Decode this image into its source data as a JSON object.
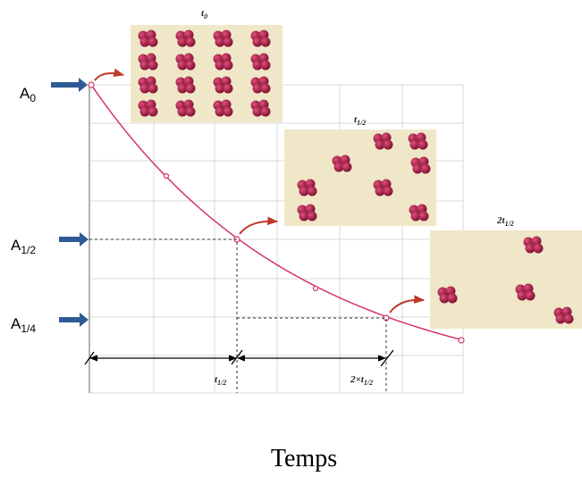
{
  "levels": [
    {
      "base": "A",
      "sub": "0"
    },
    {
      "base": "A",
      "sub": "1/2"
    },
    {
      "base": "A",
      "sub": "1/4"
    }
  ],
  "panels": [
    {
      "prefix": "",
      "base": "t",
      "sub": "0"
    },
    {
      "prefix": "",
      "base": "t",
      "sub": "1/2"
    },
    {
      "prefix": "2",
      "base": "t",
      "sub": "1/2"
    }
  ],
  "time_marks": [
    {
      "prefix": "",
      "base": "t",
      "sub": "1/2"
    },
    {
      "prefix": "2×",
      "base": "t",
      "sub": "1/2"
    }
  ],
  "x_axis_label": "Temps"
}
